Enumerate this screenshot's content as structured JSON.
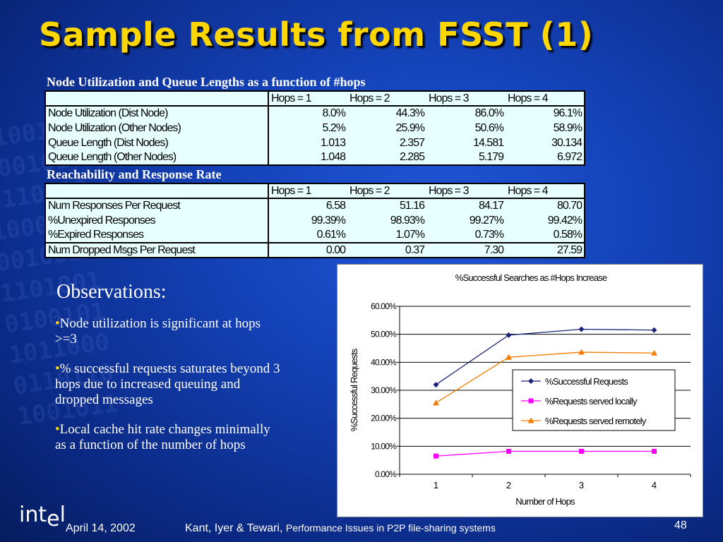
{
  "title": "Sample Results from FSST (1)",
  "table1": {
    "label": "Node Utilization and Queue Lengths as a function of #hops",
    "headers": [
      "Hops = 1",
      "Hops = 2",
      "Hops = 3",
      "Hops = 4"
    ],
    "rows": [
      {
        "label": "Node Utilization (Dist Node)",
        "values": [
          "8.0%",
          "44.3%",
          "86.0%",
          "96.1%"
        ]
      },
      {
        "label": "Node Utilization (Other Nodes)",
        "values": [
          "5.2%",
          "25.9%",
          "50.6%",
          "58.9%"
        ]
      },
      {
        "label": "Queue Length (Dist Nodes)",
        "values": [
          "1.013",
          "2.357",
          "14.581",
          "30.134"
        ]
      },
      {
        "label": "Queue Length (Other Nodes)",
        "values": [
          "1.048",
          "2.285",
          "5.179",
          "6.972"
        ]
      }
    ]
  },
  "table2": {
    "label": "Reachability and Response Rate",
    "headers": [
      "Hops = 1",
      "Hops = 2",
      "Hops = 3",
      "Hops = 4"
    ],
    "rows": [
      {
        "label": "Num Responses Per Request",
        "values": [
          "6.58",
          "51.16",
          "84.17",
          "80.70"
        ]
      },
      {
        "label": "%Unexpired Responses",
        "values": [
          "99.39%",
          "98.93%",
          "99.27%",
          "99.42%"
        ]
      },
      {
        "label": "%Expired Responses",
        "values": [
          "0.61%",
          "1.07%",
          "0.73%",
          "0.58%"
        ]
      },
      {
        "label": "Num Dropped Msgs Per Request",
        "values": [
          "0.00",
          "0.37",
          "7.30",
          "27.59"
        ]
      }
    ]
  },
  "observations": {
    "heading": "Observations:",
    "bullet_char": "•",
    "items": [
      "Node utilization is significant at hops >=3",
      "% successful requests saturates beyond 3 hops due to increased queuing and dropped messages",
      "Local cache hit rate changes minimally as a function of the number of hops"
    ]
  },
  "chart_data": {
    "type": "line",
    "title": "%Successful Searches as #Hops Increase",
    "xlabel": "Number of Hops",
    "ylabel": "%Successful Requests",
    "x": [
      1,
      2,
      3,
      4
    ],
    "ylim": [
      0,
      60
    ],
    "yticks": [
      "0.00%",
      "10.00%",
      "20.00%",
      "30.00%",
      "40.00%",
      "50.00%",
      "60.00%"
    ],
    "grid": true,
    "legend_position": "right",
    "series": [
      {
        "name": "%Successful Requests",
        "values": [
          32.0,
          49.7,
          51.8,
          51.5
        ],
        "color": "#1a237e",
        "marker": "diamond"
      },
      {
        "name": "%Requests served locally",
        "values": [
          6.5,
          8.2,
          8.2,
          8.2
        ],
        "color": "#ff00ff",
        "marker": "square"
      },
      {
        "name": "%Requests served remotely",
        "values": [
          25.5,
          41.8,
          43.6,
          43.3
        ],
        "color": "#f57c00",
        "marker": "triangle"
      }
    ]
  },
  "footer": {
    "logo": "int",
    "logo_sub": "e",
    "logo_end": "l",
    "date": "April 14, 2002",
    "authors": "Kant, Iyer & Tewari, ",
    "paper_title": "Performance Issues in P2P file-sharing systems",
    "page": "48"
  }
}
